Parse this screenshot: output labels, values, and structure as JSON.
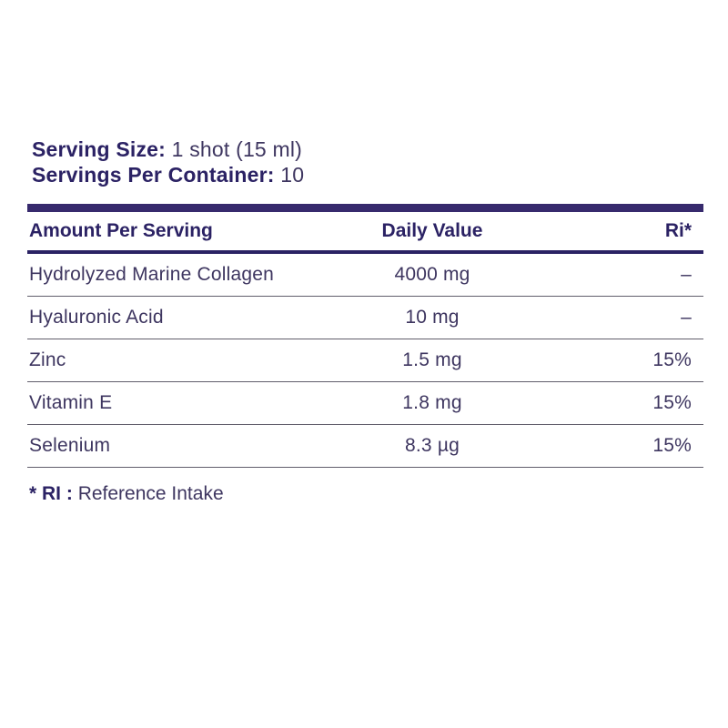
{
  "serving": {
    "size_label": "Serving Size:",
    "size_value": "1 shot (15 ml)",
    "per_container_label": "Servings Per Container:",
    "per_container_value": "10"
  },
  "table": {
    "headers": [
      "Amount Per Serving",
      "Daily Value",
      "Ri*"
    ],
    "rows": [
      {
        "name": "Hydrolyzed Marine Collagen",
        "amount": "4000 mg",
        "ri": "–"
      },
      {
        "name": "Hyaluronic Acid",
        "amount": "10 mg",
        "ri": "–"
      },
      {
        "name": "Zinc",
        "amount": "1.5 mg",
        "ri": "15%"
      },
      {
        "name": "Vitamin E",
        "amount": "1.8 mg",
        "ri": "15%"
      },
      {
        "name": "Selenium",
        "amount": "8.3 µg",
        "ri": "15%"
      }
    ]
  },
  "footnote": {
    "label": "* RI :",
    "value": "Reference Intake"
  },
  "colors": {
    "text_dark": "#2b2264",
    "text_regular": "#3e3660",
    "thick_bar": "#372a6d",
    "row_divider": "#605d6b",
    "background": "#ffffff"
  }
}
